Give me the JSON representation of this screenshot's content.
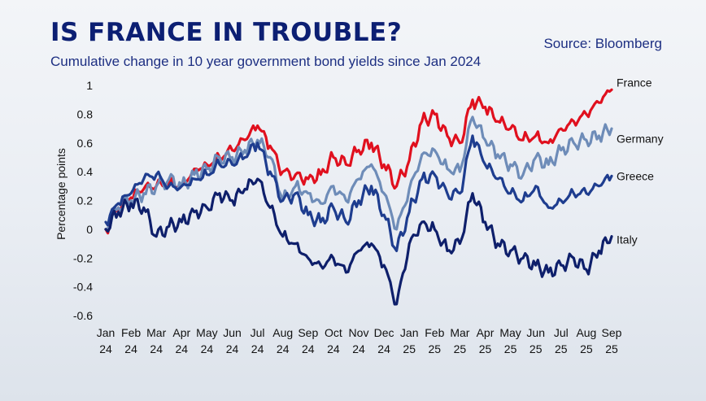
{
  "header": {
    "title": "IS FRANCE IN TROUBLE?",
    "subtitle": "Cumulative change in 10 year government bond yields since Jan 2024",
    "source": "Source: Bloomberg"
  },
  "chart_data": {
    "type": "line",
    "title": "IS FRANCE IN TROUBLE?",
    "subtitle": "Cumulative change in 10 year government bond yields since Jan 2024",
    "source": "Source: Bloomberg",
    "ylabel": "Percentage points",
    "ylim": [
      -0.6,
      1
    ],
    "yticks": [
      -0.6,
      -0.4,
      -0.2,
      0,
      0.2,
      0.4,
      0.6,
      0.8,
      1
    ],
    "ytick_labels": [
      "-0.6",
      "-0.4",
      "-0.2",
      "0",
      "0.2",
      "0.4",
      "0.6",
      "0.8",
      "1"
    ],
    "x_ticks": [
      {
        "month": "Jan",
        "year": "24"
      },
      {
        "month": "Feb",
        "year": "24"
      },
      {
        "month": "Mar",
        "year": "24"
      },
      {
        "month": "Apr",
        "year": "24"
      },
      {
        "month": "May",
        "year": "24"
      },
      {
        "month": "Jun",
        "year": "24"
      },
      {
        "month": "Jul",
        "year": "24"
      },
      {
        "month": "Aug",
        "year": "24"
      },
      {
        "month": "Sep",
        "year": "24"
      },
      {
        "month": "Oct",
        "year": "24"
      },
      {
        "month": "Nov",
        "year": "24"
      },
      {
        "month": "Dec",
        "year": "24"
      },
      {
        "month": "Jan",
        "year": "25"
      },
      {
        "month": "Feb",
        "year": "25"
      },
      {
        "month": "Mar",
        "year": "25"
      },
      {
        "month": "Apr",
        "year": "25"
      },
      {
        "month": "May",
        "year": "25"
      },
      {
        "month": "Jun",
        "year": "25"
      },
      {
        "month": "Jul",
        "year": "25"
      },
      {
        "month": "Aug",
        "year": "25"
      },
      {
        "month": "Sep",
        "year": "25"
      }
    ],
    "grid": false,
    "legend": "direct labels at right end of lines",
    "series": [
      {
        "name": "France",
        "color": "#e0101e",
        "x": [
          0,
          0.5,
          1,
          1.5,
          2,
          2.5,
          3,
          3.5,
          4,
          4.5,
          5,
          5.5,
          6,
          6.5,
          7,
          7.5,
          8,
          8.5,
          9,
          9.5,
          10,
          10.5,
          11,
          11.5,
          12,
          12.5,
          13,
          13.5,
          14,
          14.5,
          15,
          15.5,
          16,
          16.5,
          17,
          17.5,
          18,
          18.5,
          19,
          19.5,
          20
        ],
        "values": [
          0.0,
          0.15,
          0.22,
          0.28,
          0.3,
          0.32,
          0.3,
          0.42,
          0.45,
          0.5,
          0.55,
          0.62,
          0.72,
          0.58,
          0.4,
          0.38,
          0.35,
          0.38,
          0.5,
          0.45,
          0.55,
          0.6,
          0.45,
          0.3,
          0.48,
          0.75,
          0.8,
          0.65,
          0.6,
          0.9,
          0.85,
          0.75,
          0.7,
          0.62,
          0.65,
          0.6,
          0.7,
          0.75,
          0.8,
          0.88,
          0.97
        ]
      },
      {
        "name": "Germany",
        "color": "#6e8cb8",
        "x": [
          0,
          0.5,
          1,
          1.5,
          2,
          2.5,
          3,
          3.5,
          4,
          4.5,
          5,
          5.5,
          6,
          6.5,
          7,
          7.5,
          8,
          8.5,
          9,
          9.5,
          10,
          10.5,
          11,
          11.5,
          12,
          12.5,
          13,
          13.5,
          14,
          14.5,
          15,
          15.5,
          16,
          16.5,
          17,
          17.5,
          18,
          18.5,
          19,
          19.5,
          20
        ],
        "values": [
          0.0,
          0.15,
          0.2,
          0.25,
          0.3,
          0.35,
          0.3,
          0.38,
          0.42,
          0.5,
          0.5,
          0.55,
          0.62,
          0.5,
          0.2,
          0.3,
          0.25,
          0.18,
          0.3,
          0.2,
          0.35,
          0.45,
          0.25,
          0.0,
          0.28,
          0.52,
          0.55,
          0.42,
          0.4,
          0.78,
          0.62,
          0.52,
          0.45,
          0.38,
          0.5,
          0.45,
          0.55,
          0.6,
          0.62,
          0.65,
          0.7
        ]
      },
      {
        "name": "Greece",
        "color": "#1e3d8f",
        "x": [
          0,
          0.5,
          1,
          1.5,
          2,
          2.5,
          3,
          3.5,
          4,
          4.5,
          5,
          5.5,
          6,
          6.5,
          7,
          7.5,
          8,
          8.5,
          9,
          9.5,
          10,
          10.5,
          11,
          11.5,
          12,
          12.5,
          13,
          13.5,
          14,
          14.5,
          15,
          15.5,
          16,
          16.5,
          17,
          17.5,
          18,
          18.5,
          19,
          19.5,
          20
        ],
        "values": [
          0.05,
          0.18,
          0.25,
          0.35,
          0.38,
          0.3,
          0.3,
          0.35,
          0.38,
          0.45,
          0.45,
          0.5,
          0.6,
          0.4,
          0.2,
          0.25,
          0.1,
          0.05,
          0.15,
          0.05,
          0.2,
          0.3,
          0.1,
          -0.15,
          0.12,
          0.35,
          0.38,
          0.25,
          0.25,
          0.65,
          0.45,
          0.35,
          0.25,
          0.2,
          0.3,
          0.15,
          0.2,
          0.25,
          0.25,
          0.3,
          0.37
        ]
      },
      {
        "name": "Italy",
        "color": "#0e1f6b",
        "x": [
          0,
          0.5,
          1,
          1.5,
          2,
          2.5,
          3,
          3.5,
          4,
          4.5,
          5,
          5.5,
          6,
          6.5,
          7,
          7.5,
          8,
          8.5,
          9,
          9.5,
          10,
          10.5,
          11,
          11.5,
          12,
          12.5,
          13,
          13.5,
          14,
          14.5,
          15,
          15.5,
          16,
          16.5,
          17,
          17.5,
          18,
          18.5,
          19,
          19.5,
          20
        ],
        "values": [
          0.0,
          0.12,
          0.18,
          0.15,
          -0.05,
          0.02,
          0.05,
          0.12,
          0.15,
          0.25,
          0.2,
          0.28,
          0.35,
          0.15,
          -0.05,
          -0.1,
          -0.2,
          -0.25,
          -0.2,
          -0.3,
          -0.15,
          -0.1,
          -0.25,
          -0.52,
          -0.1,
          0.05,
          0.0,
          -0.15,
          -0.1,
          0.25,
          0.05,
          -0.1,
          -0.15,
          -0.2,
          -0.25,
          -0.3,
          -0.25,
          -0.2,
          -0.28,
          -0.15,
          -0.05
        ]
      }
    ]
  }
}
